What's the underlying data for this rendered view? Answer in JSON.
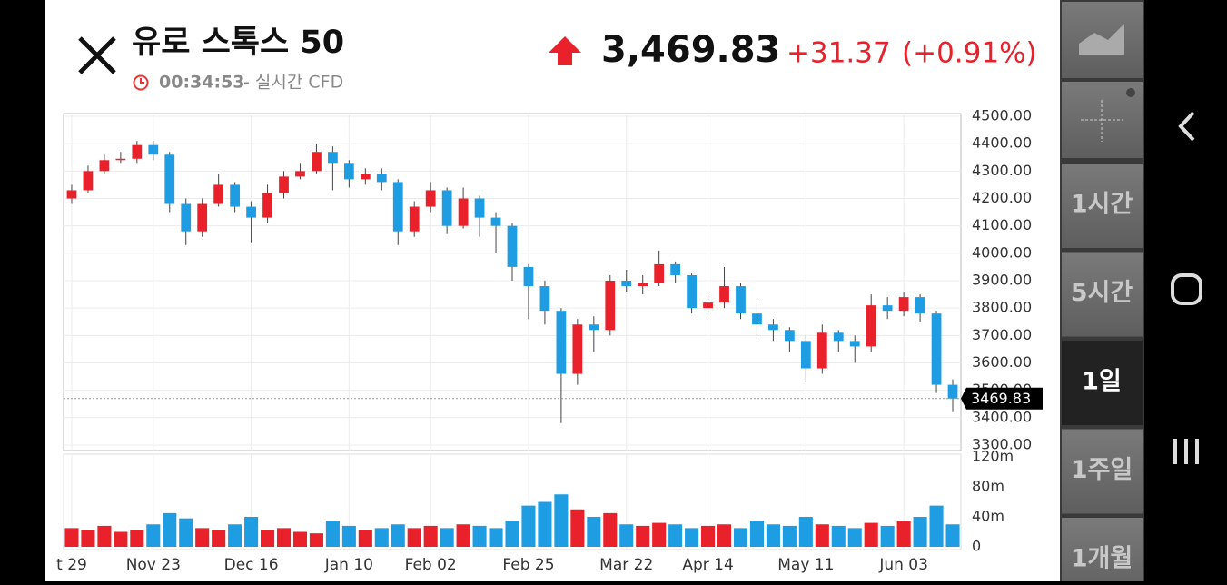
{
  "header": {
    "title": "유로 스톡스 50",
    "time": "00:34:53",
    "feed": "- 실시간 CFD",
    "price": "3,469.83",
    "change": "+31.37",
    "change_pct": "(+0.91%)"
  },
  "sidebar": {
    "intervals": [
      "1시간",
      "5시간",
      "1일",
      "1주일",
      "1개월"
    ],
    "selected": 2
  },
  "chart_data": {
    "type": "candlestick",
    "categories": [
      "t 29",
      null,
      null,
      null,
      null,
      "Nov 23",
      null,
      null,
      null,
      null,
      null,
      "Dec 16",
      null,
      null,
      null,
      null,
      null,
      "Jan 10",
      null,
      null,
      null,
      null,
      "Feb 02",
      null,
      null,
      null,
      null,
      null,
      "Feb 25",
      null,
      null,
      null,
      null,
      null,
      "Mar 22",
      null,
      null,
      null,
      null,
      "Apr 14",
      null,
      null,
      null,
      null,
      null,
      "May 11",
      null,
      null,
      null,
      null,
      null,
      "Jun 03",
      null,
      null,
      null
    ],
    "open": [
      4200,
      4230,
      4300,
      4340,
      4345,
      4395,
      4360,
      4180,
      4080,
      4180,
      4250,
      4170,
      4130,
      4220,
      4280,
      4300,
      4370,
      4330,
      4270,
      4290,
      4260,
      4080,
      4170,
      4230,
      4100,
      4200,
      4130,
      4100,
      3950,
      3880,
      3790,
      3560,
      3740,
      3720,
      3900,
      3880,
      3890,
      3960,
      3920,
      3800,
      3820,
      3880,
      3780,
      3740,
      3720,
      3680,
      3580,
      3710,
      3680,
      3660,
      3810,
      3790,
      3840,
      3780,
      3520
    ],
    "high": [
      4250,
      4320,
      4360,
      4370,
      4410,
      4410,
      4370,
      4200,
      4200,
      4290,
      4260,
      4190,
      4250,
      4300,
      4330,
      4400,
      4390,
      4340,
      4310,
      4310,
      4270,
      4190,
      4260,
      4240,
      4240,
      4210,
      4150,
      4110,
      3960,
      3900,
      3800,
      3760,
      3770,
      3920,
      3940,
      3920,
      4010,
      3970,
      3930,
      3850,
      3950,
      3890,
      3830,
      3760,
      3730,
      3700,
      3740,
      3720,
      3700,
      3850,
      3840,
      3860,
      3850,
      3790,
      3540
    ],
    "low": [
      4180,
      4220,
      4290,
      4330,
      4330,
      4340,
      4150,
      4030,
      4060,
      4170,
      4150,
      4040,
      4110,
      4200,
      4270,
      4290,
      4230,
      4240,
      4250,
      4230,
      4030,
      4060,
      4150,
      4070,
      4090,
      4060,
      4000,
      3900,
      3760,
      3740,
      3380,
      3520,
      3640,
      3700,
      3860,
      3850,
      3880,
      3890,
      3780,
      3780,
      3800,
      3760,
      3690,
      3680,
      3640,
      3530,
      3560,
      3640,
      3600,
      3640,
      3760,
      3770,
      3750,
      3490,
      3420
    ],
    "close": [
      4230,
      4300,
      4340,
      4345,
      4395,
      4360,
      4180,
      4080,
      4180,
      4250,
      4170,
      4130,
      4220,
      4280,
      4300,
      4370,
      4330,
      4270,
      4290,
      4260,
      4080,
      4170,
      4230,
      4100,
      4200,
      4130,
      4100,
      3950,
      3880,
      3790,
      3560,
      3740,
      3720,
      3900,
      3880,
      3890,
      3960,
      3920,
      3800,
      3820,
      3880,
      3780,
      3740,
      3720,
      3680,
      3580,
      3710,
      3680,
      3660,
      3810,
      3790,
      3840,
      3780,
      3520,
      3469.83
    ],
    "volume": [
      25,
      22,
      28,
      20,
      22,
      30,
      45,
      38,
      25,
      22,
      30,
      40,
      22,
      25,
      20,
      18,
      35,
      28,
      22,
      25,
      30,
      25,
      28,
      25,
      30,
      28,
      25,
      35,
      55,
      60,
      70,
      50,
      40,
      45,
      30,
      28,
      32,
      30,
      25,
      28,
      30,
      25,
      35,
      30,
      28,
      40,
      30,
      28,
      25,
      32,
      28,
      35,
      40,
      55,
      30
    ],
    "up_color": "#e8212b",
    "down_color": "#1f9de3",
    "last_price": 3469.83,
    "ylim": [
      3280,
      4510
    ],
    "yticks": [
      {
        "value": 3300,
        "label": "3300.00"
      },
      {
        "value": 3400,
        "label": "3400.00"
      },
      {
        "value": 3500,
        "label": "3500.00"
      },
      {
        "value": 3600,
        "label": "3600.00"
      },
      {
        "value": 3700,
        "label": "3700.00"
      },
      {
        "value": 3800,
        "label": "3800.00"
      },
      {
        "value": 3900,
        "label": "3900.00"
      },
      {
        "value": 4000,
        "label": "4000.00"
      },
      {
        "value": 4100,
        "label": "4100.00"
      },
      {
        "value": 4200,
        "label": "4200.00"
      },
      {
        "value": 4300,
        "label": "4300.00"
      },
      {
        "value": 4400,
        "label": "4400.00"
      },
      {
        "value": 4500,
        "label": "4500.00"
      }
    ],
    "volume_ylim": [
      0,
      120
    ],
    "volume_yticks": [
      0,
      {
        "value": 40,
        "label": "40m"
      },
      {
        "value": 80,
        "label": "80m"
      },
      {
        "value": 120,
        "label": "120m"
      }
    ],
    "grid": true
  }
}
